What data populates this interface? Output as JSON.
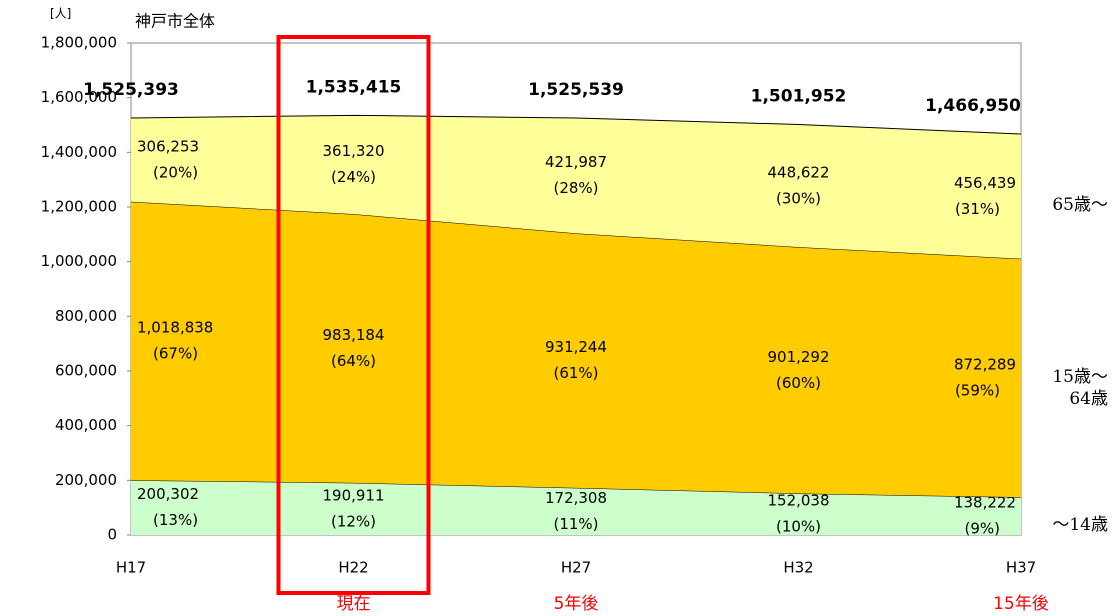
{
  "chart_data": {
    "type": "stacked_area",
    "title": "神戸市全体",
    "y_label": "[人]",
    "categories": [
      "H17",
      "H22",
      "H27",
      "H32",
      "H37"
    ],
    "series": [
      {
        "name": "〜14歳",
        "color": "#ccffcc",
        "values": [
          200302,
          190911,
          172308,
          152038,
          138222
        ],
        "value_labels": [
          "200,302",
          "190,911",
          "172,308",
          "152,038",
          "138,222"
        ],
        "share_labels": [
          "(13%)",
          "(12%)",
          "(11%)",
          "(10%)",
          "(9%)"
        ]
      },
      {
        "name": "15歳〜64歳",
        "color": "#ffcc00",
        "values": [
          1018838,
          983184,
          931244,
          901292,
          872289
        ],
        "value_labels": [
          "1,018,838",
          "983,184",
          "931,244",
          "901,292",
          "872,289"
        ],
        "share_labels": [
          "(67%)",
          "(64%)",
          "(61%)",
          "(60%)",
          "(59%)"
        ]
      },
      {
        "name": "65歳〜",
        "color": "#ffff99",
        "values": [
          306253,
          361320,
          421987,
          448622,
          456439
        ],
        "value_labels": [
          "306,253",
          "361,320",
          "421,987",
          "448,622",
          "456,439"
        ],
        "share_labels": [
          "(20%)",
          "(24%)",
          "(28%)",
          "(30%)",
          "(31%)"
        ]
      }
    ],
    "totals": [
      1525393,
      1535415,
      1525539,
      1501952,
      1466950
    ],
    "total_labels": [
      "1,525,393",
      "1,535,415",
      "1,525,539",
      "1,501,952",
      "1,466,950"
    ],
    "period_labels": [
      null,
      "現在",
      "5年後",
      null,
      "15年後"
    ],
    "highlight": "H22",
    "highlight_color": "#ff0000",
    "ylim": [
      0,
      1800000
    ],
    "yticks": [
      0,
      {
        "value": 200000,
        "label": "200,000"
      },
      {
        "value": 400000,
        "label": "400,000"
      },
      {
        "value": 600000,
        "label": "600,000"
      },
      {
        "value": 800000,
        "label": "800,000"
      },
      {
        "value": 1000000,
        "label": "1,000,000"
      },
      {
        "value": 1200000,
        "label": "1,200,000"
      },
      {
        "value": 1400000,
        "label": "1,400,000"
      },
      {
        "value": 1600000,
        "label": "1,600,000"
      },
      {
        "value": 1800000,
        "label": "1,800,000"
      }
    ]
  }
}
